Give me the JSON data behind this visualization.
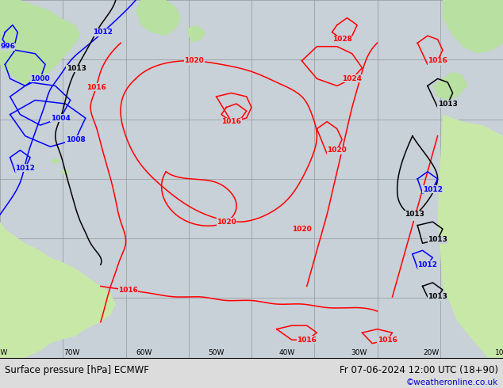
{
  "title_left": "Surface pressure [hPa] ECMWF",
  "title_right": "Fr 07-06-2024 12:00 UTC (18+90)",
  "credit": "©weatheronline.co.uk",
  "ocean_color": "#c8d0d8",
  "land_color": "#b8e0a0",
  "land_color2": "#c8e8a8",
  "grid_color": "#909898",
  "bottom_bar_color": "#dcdcdc",
  "credit_color": "#0000cc",
  "font_size_bottom": 8.5,
  "font_size_credit": 7.5,
  "font_size_label": 6.5,
  "contour_lw": 1.1
}
